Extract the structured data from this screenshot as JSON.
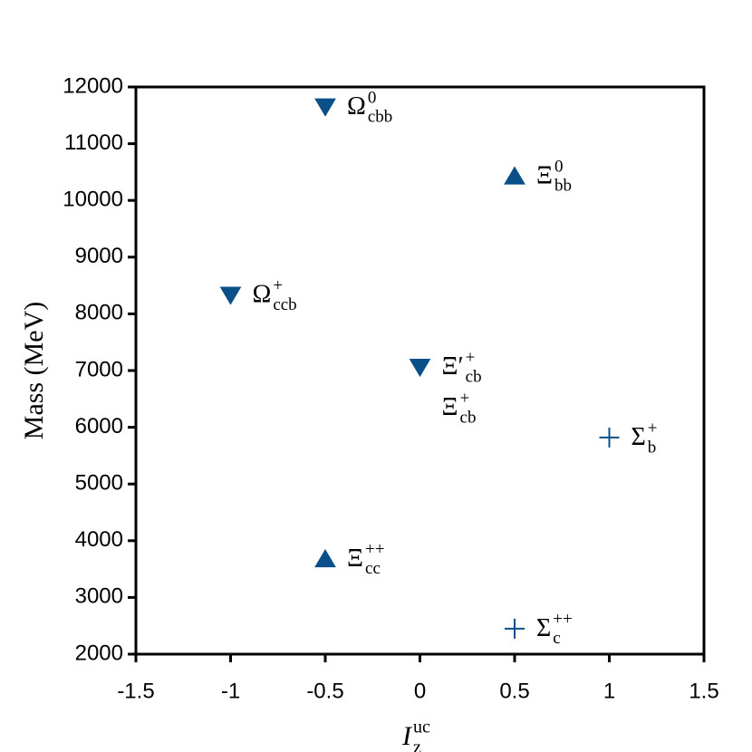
{
  "chart_data": {
    "type": "scatter",
    "color": "#0b4f8a",
    "xlabel": {
      "base": "I",
      "sub": "z",
      "sup": "uc"
    },
    "ylabel": "Mass (MeV)",
    "xlim": [
      -1.5,
      1.5
    ],
    "xticks": [
      -1.5,
      -1,
      -0.5,
      0,
      0.5,
      1,
      1.5
    ],
    "ylim": [
      2000,
      12000
    ],
    "yticks": [
      2000,
      3000,
      4000,
      5000,
      6000,
      7000,
      8000,
      9000,
      10000,
      11000,
      12000
    ],
    "points": [
      {
        "x": -0.5,
        "y": 11650,
        "marker": "down-triangle",
        "labels": [
          {
            "base": "Ω",
            "sub": "cbb",
            "sup": "0"
          }
        ]
      },
      {
        "x": 0.5,
        "y": 10430,
        "marker": "up-triangle",
        "labels": [
          {
            "base": "Ξ",
            "sub": "bb",
            "sup": "0"
          }
        ]
      },
      {
        "x": -1,
        "y": 8330,
        "marker": "down-triangle",
        "labels": [
          {
            "base": "Ω",
            "sub": "ccb",
            "sup": "+"
          }
        ]
      },
      {
        "x": 0,
        "y": 7060,
        "marker": "down-triangle",
        "labels": [
          {
            "base": "Ξ′",
            "sub": "cb",
            "sup": "+"
          },
          {
            "base": "Ξ",
            "sub": "cb",
            "sup": "+"
          }
        ]
      },
      {
        "x": 1,
        "y": 5820,
        "marker": "plus",
        "labels": [
          {
            "base": "Σ",
            "sub": "b",
            "sup": "+"
          }
        ]
      },
      {
        "x": -0.5,
        "y": 3680,
        "marker": "up-triangle",
        "labels": [
          {
            "base": "Ξ",
            "sub": "cc",
            "sup": "++"
          }
        ]
      },
      {
        "x": 0.5,
        "y": 2450,
        "marker": "plus",
        "labels": [
          {
            "base": "Σ",
            "sub": "c",
            "sup": "++"
          }
        ]
      }
    ]
  }
}
